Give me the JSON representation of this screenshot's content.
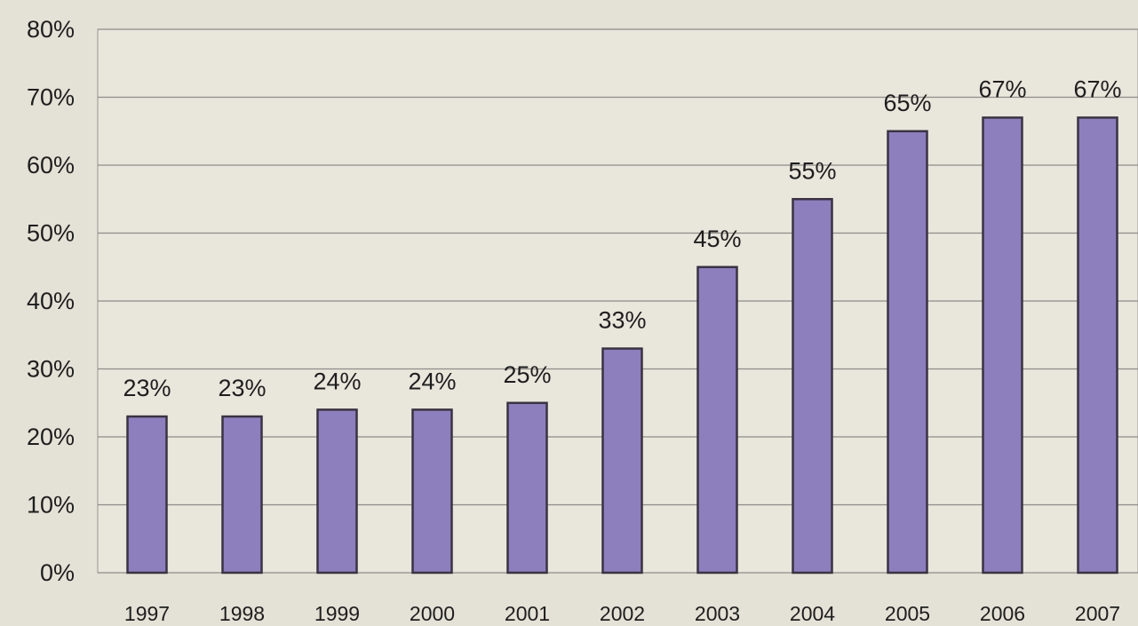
{
  "chart_data": {
    "type": "bar",
    "categories": [
      "1997",
      "1998",
      "1999",
      "2000",
      "2001",
      "2002",
      "2003",
      "2004",
      "2005",
      "2006",
      "2007"
    ],
    "values": [
      23,
      23,
      24,
      24,
      25,
      33,
      45,
      55,
      65,
      67,
      67
    ],
    "value_labels": [
      "23%",
      "23%",
      "24%",
      "24%",
      "25%",
      "33%",
      "45%",
      "55%",
      "65%",
      "67%",
      "67%"
    ],
    "color": "#8d7fbd",
    "ylim": [
      0,
      80
    ],
    "yticks": [
      {
        "value": 0,
        "label": "0%"
      },
      {
        "value": 10,
        "label": "10%"
      },
      {
        "value": 20,
        "label": "20%"
      },
      {
        "value": 30,
        "label": "30%"
      },
      {
        "value": 40,
        "label": "40%"
      },
      {
        "value": 50,
        "label": "50%"
      },
      {
        "value": 60,
        "label": "60%"
      },
      {
        "value": 70,
        "label": "70%"
      },
      {
        "value": 80,
        "label": "80%"
      }
    ],
    "grid": true
  }
}
